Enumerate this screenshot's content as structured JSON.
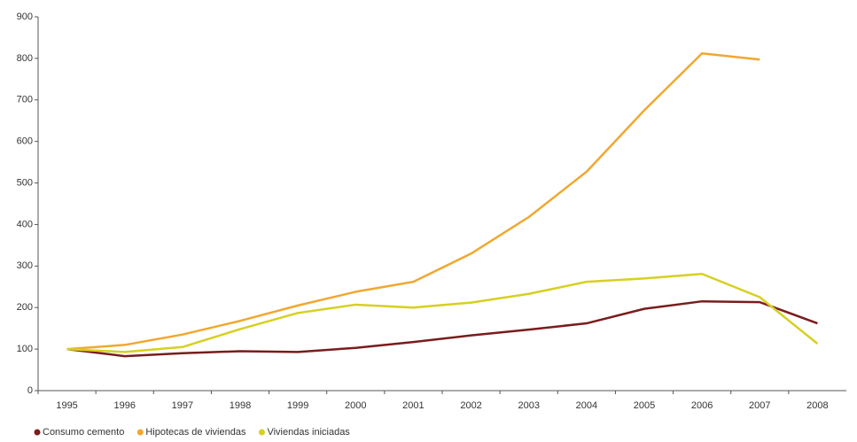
{
  "chart_data": {
    "type": "line",
    "categories": [
      "1995",
      "1996",
      "1997",
      "1998",
      "1999",
      "2000",
      "2001",
      "2002",
      "2003",
      "2004",
      "2005",
      "2006",
      "2007",
      "2008"
    ],
    "series": [
      {
        "name": "Consumo cemento",
        "color": "#7a1c1c",
        "values": [
          100,
          83,
          90,
          95,
          93,
          103,
          117,
          133,
          147,
          162,
          197,
          215,
          213,
          162
        ]
      },
      {
        "name": "Hipotecas de viviendas",
        "color": "#f0a830",
        "values": [
          100,
          110,
          135,
          168,
          205,
          238,
          262,
          330,
          418,
          527,
          675,
          812,
          797,
          null
        ]
      },
      {
        "name": "Viviendas iniciadas",
        "color": "#d6d020",
        "values": [
          100,
          93,
          105,
          148,
          187,
          207,
          200,
          212,
          233,
          262,
          270,
          281,
          225,
          113
        ]
      }
    ],
    "ylim": [
      0,
      900
    ],
    "yticks": [
      0,
      100,
      200,
      300,
      400,
      500,
      600,
      700,
      800,
      900
    ],
    "grid": false
  }
}
